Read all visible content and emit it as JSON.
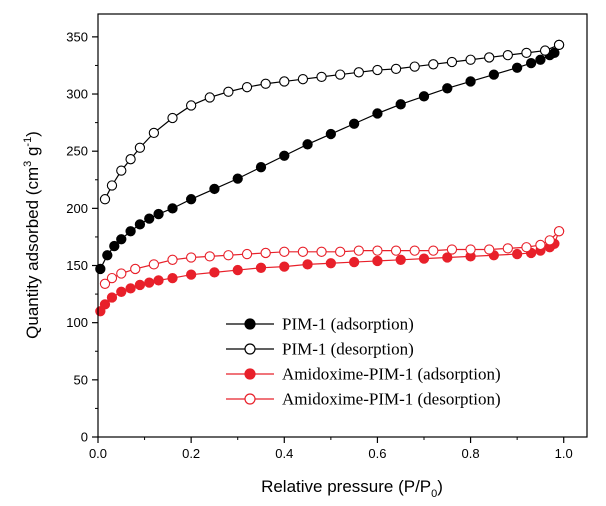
{
  "chart_data": {
    "type": "scatter",
    "xlabel": "Relative pressure (P/P",
    "xlabel_sub": "0",
    "xlabel_close": ")",
    "ylabel": "Quantity adsorbed (cm",
    "ylabel_sup": "3",
    "ylabel_mid": " g",
    "ylabel_sup2": "-1",
    "ylabel_close": ")",
    "xlim": [
      0.0,
      1.05
    ],
    "ylim": [
      0,
      370
    ],
    "xticks": [
      0.0,
      0.2,
      0.4,
      0.6,
      0.8,
      1.0
    ],
    "xtick_labels": [
      "0.0",
      "0.2",
      "0.4",
      "0.6",
      "0.8",
      "1.0"
    ],
    "yticks": [
      0,
      50,
      100,
      150,
      200,
      250,
      300,
      350
    ],
    "ytick_labels": [
      "0",
      "50",
      "100",
      "150",
      "200",
      "250",
      "300",
      "350"
    ],
    "legend_position": "bottom-right",
    "series": [
      {
        "name": "PIM-1 (adsorption)",
        "color": "#000000",
        "filled": true,
        "points": [
          [
            0.005,
            147
          ],
          [
            0.02,
            159
          ],
          [
            0.035,
            167
          ],
          [
            0.05,
            173
          ],
          [
            0.07,
            180
          ],
          [
            0.09,
            186
          ],
          [
            0.11,
            191
          ],
          [
            0.13,
            195
          ],
          [
            0.16,
            200
          ],
          [
            0.2,
            208
          ],
          [
            0.25,
            217
          ],
          [
            0.3,
            226
          ],
          [
            0.35,
            236
          ],
          [
            0.4,
            246
          ],
          [
            0.45,
            256
          ],
          [
            0.5,
            265
          ],
          [
            0.55,
            274
          ],
          [
            0.6,
            283
          ],
          [
            0.65,
            291
          ],
          [
            0.7,
            298
          ],
          [
            0.75,
            305
          ],
          [
            0.8,
            311
          ],
          [
            0.85,
            317
          ],
          [
            0.9,
            323
          ],
          [
            0.93,
            327
          ],
          [
            0.95,
            330
          ],
          [
            0.97,
            334
          ],
          [
            0.98,
            336
          ],
          [
            0.99,
            343
          ]
        ]
      },
      {
        "name": "PIM-1 (desorption)",
        "color": "#000000",
        "filled": false,
        "points": [
          [
            0.99,
            343
          ],
          [
            0.96,
            338
          ],
          [
            0.92,
            336
          ],
          [
            0.88,
            334
          ],
          [
            0.84,
            332
          ],
          [
            0.8,
            330
          ],
          [
            0.76,
            328
          ],
          [
            0.72,
            326
          ],
          [
            0.68,
            324
          ],
          [
            0.64,
            322
          ],
          [
            0.6,
            321
          ],
          [
            0.56,
            319
          ],
          [
            0.52,
            317
          ],
          [
            0.48,
            315
          ],
          [
            0.44,
            313
          ],
          [
            0.4,
            311
          ],
          [
            0.36,
            309
          ],
          [
            0.32,
            306
          ],
          [
            0.28,
            302
          ],
          [
            0.24,
            297
          ],
          [
            0.2,
            290
          ],
          [
            0.16,
            279
          ],
          [
            0.12,
            266
          ],
          [
            0.09,
            253
          ],
          [
            0.07,
            243
          ],
          [
            0.05,
            233
          ],
          [
            0.03,
            220
          ],
          [
            0.015,
            208
          ]
        ]
      },
      {
        "name": "Amidoxime-PIM-1 (adsorption)",
        "color": "#e8202a",
        "filled": true,
        "points": [
          [
            0.005,
            110
          ],
          [
            0.015,
            116
          ],
          [
            0.03,
            122
          ],
          [
            0.05,
            127
          ],
          [
            0.07,
            130
          ],
          [
            0.09,
            133
          ],
          [
            0.11,
            135
          ],
          [
            0.13,
            137
          ],
          [
            0.16,
            139
          ],
          [
            0.2,
            142
          ],
          [
            0.25,
            144
          ],
          [
            0.3,
            146
          ],
          [
            0.35,
            148
          ],
          [
            0.4,
            149
          ],
          [
            0.45,
            151
          ],
          [
            0.5,
            152
          ],
          [
            0.55,
            153
          ],
          [
            0.6,
            154
          ],
          [
            0.65,
            155
          ],
          [
            0.7,
            156
          ],
          [
            0.75,
            157
          ],
          [
            0.8,
            158
          ],
          [
            0.85,
            159
          ],
          [
            0.9,
            160
          ],
          [
            0.93,
            161
          ],
          [
            0.95,
            163
          ],
          [
            0.97,
            166
          ],
          [
            0.98,
            169
          ],
          [
            0.99,
            180
          ]
        ]
      },
      {
        "name": "Amidoxime-PIM-1 (desorption)",
        "color": "#e8202a",
        "filled": false,
        "points": [
          [
            0.99,
            180
          ],
          [
            0.97,
            172
          ],
          [
            0.95,
            168
          ],
          [
            0.92,
            166
          ],
          [
            0.88,
            165
          ],
          [
            0.84,
            164
          ],
          [
            0.8,
            164
          ],
          [
            0.76,
            164
          ],
          [
            0.72,
            163
          ],
          [
            0.68,
            163
          ],
          [
            0.64,
            163
          ],
          [
            0.6,
            163
          ],
          [
            0.56,
            163
          ],
          [
            0.52,
            162
          ],
          [
            0.48,
            162
          ],
          [
            0.44,
            162
          ],
          [
            0.4,
            162
          ],
          [
            0.36,
            161
          ],
          [
            0.32,
            160
          ],
          [
            0.28,
            159
          ],
          [
            0.24,
            158
          ],
          [
            0.2,
            157
          ],
          [
            0.16,
            155
          ],
          [
            0.12,
            151
          ],
          [
            0.08,
            147
          ],
          [
            0.05,
            143
          ],
          [
            0.03,
            139
          ],
          [
            0.015,
            134
          ]
        ]
      }
    ]
  }
}
